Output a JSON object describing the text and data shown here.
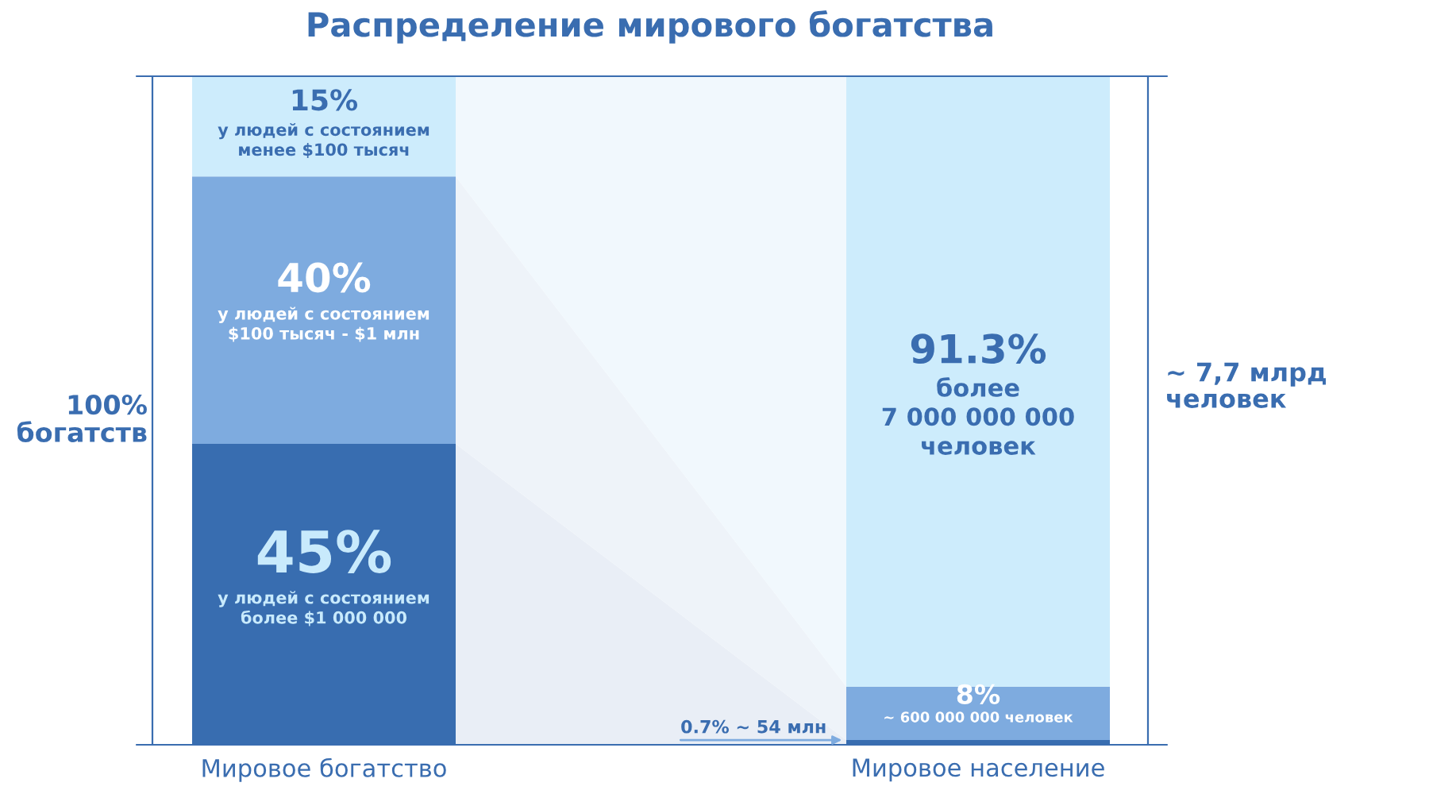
{
  "chart_data": {
    "type": "bar",
    "stacked": true,
    "title": "Распределение мирового богатства",
    "categories": [
      "Мировое богатство",
      "Мировое население"
    ],
    "ylim": [
      0,
      100
    ],
    "series": [
      {
        "color": "#386db0",
        "values": [
          45,
          0.7
        ],
        "value_labels": [
          "45%\nу людей с состоянием\nболее $1 000 000",
          null
        ]
      },
      {
        "color": "#7eabdf",
        "values": [
          40,
          8
        ],
        "value_labels": [
          "40%\nу людей с состоянием\n$100 тысяч - $1 млн",
          "8%\n~ 600 000 000 человек"
        ]
      },
      {
        "color": "#cdecfc",
        "values": [
          15,
          91.3
        ],
        "value_labels": [
          "15%\nу людей с состоянием\nменее $100 тысяч",
          "91.3%\nболее\n7 000 000 000\nчеловек"
        ]
      }
    ],
    "annotations": [
      "100%\nбогатств",
      "~ 7,7 млрд\nчеловек",
      "0.7% ~ 54 млн"
    ]
  }
}
